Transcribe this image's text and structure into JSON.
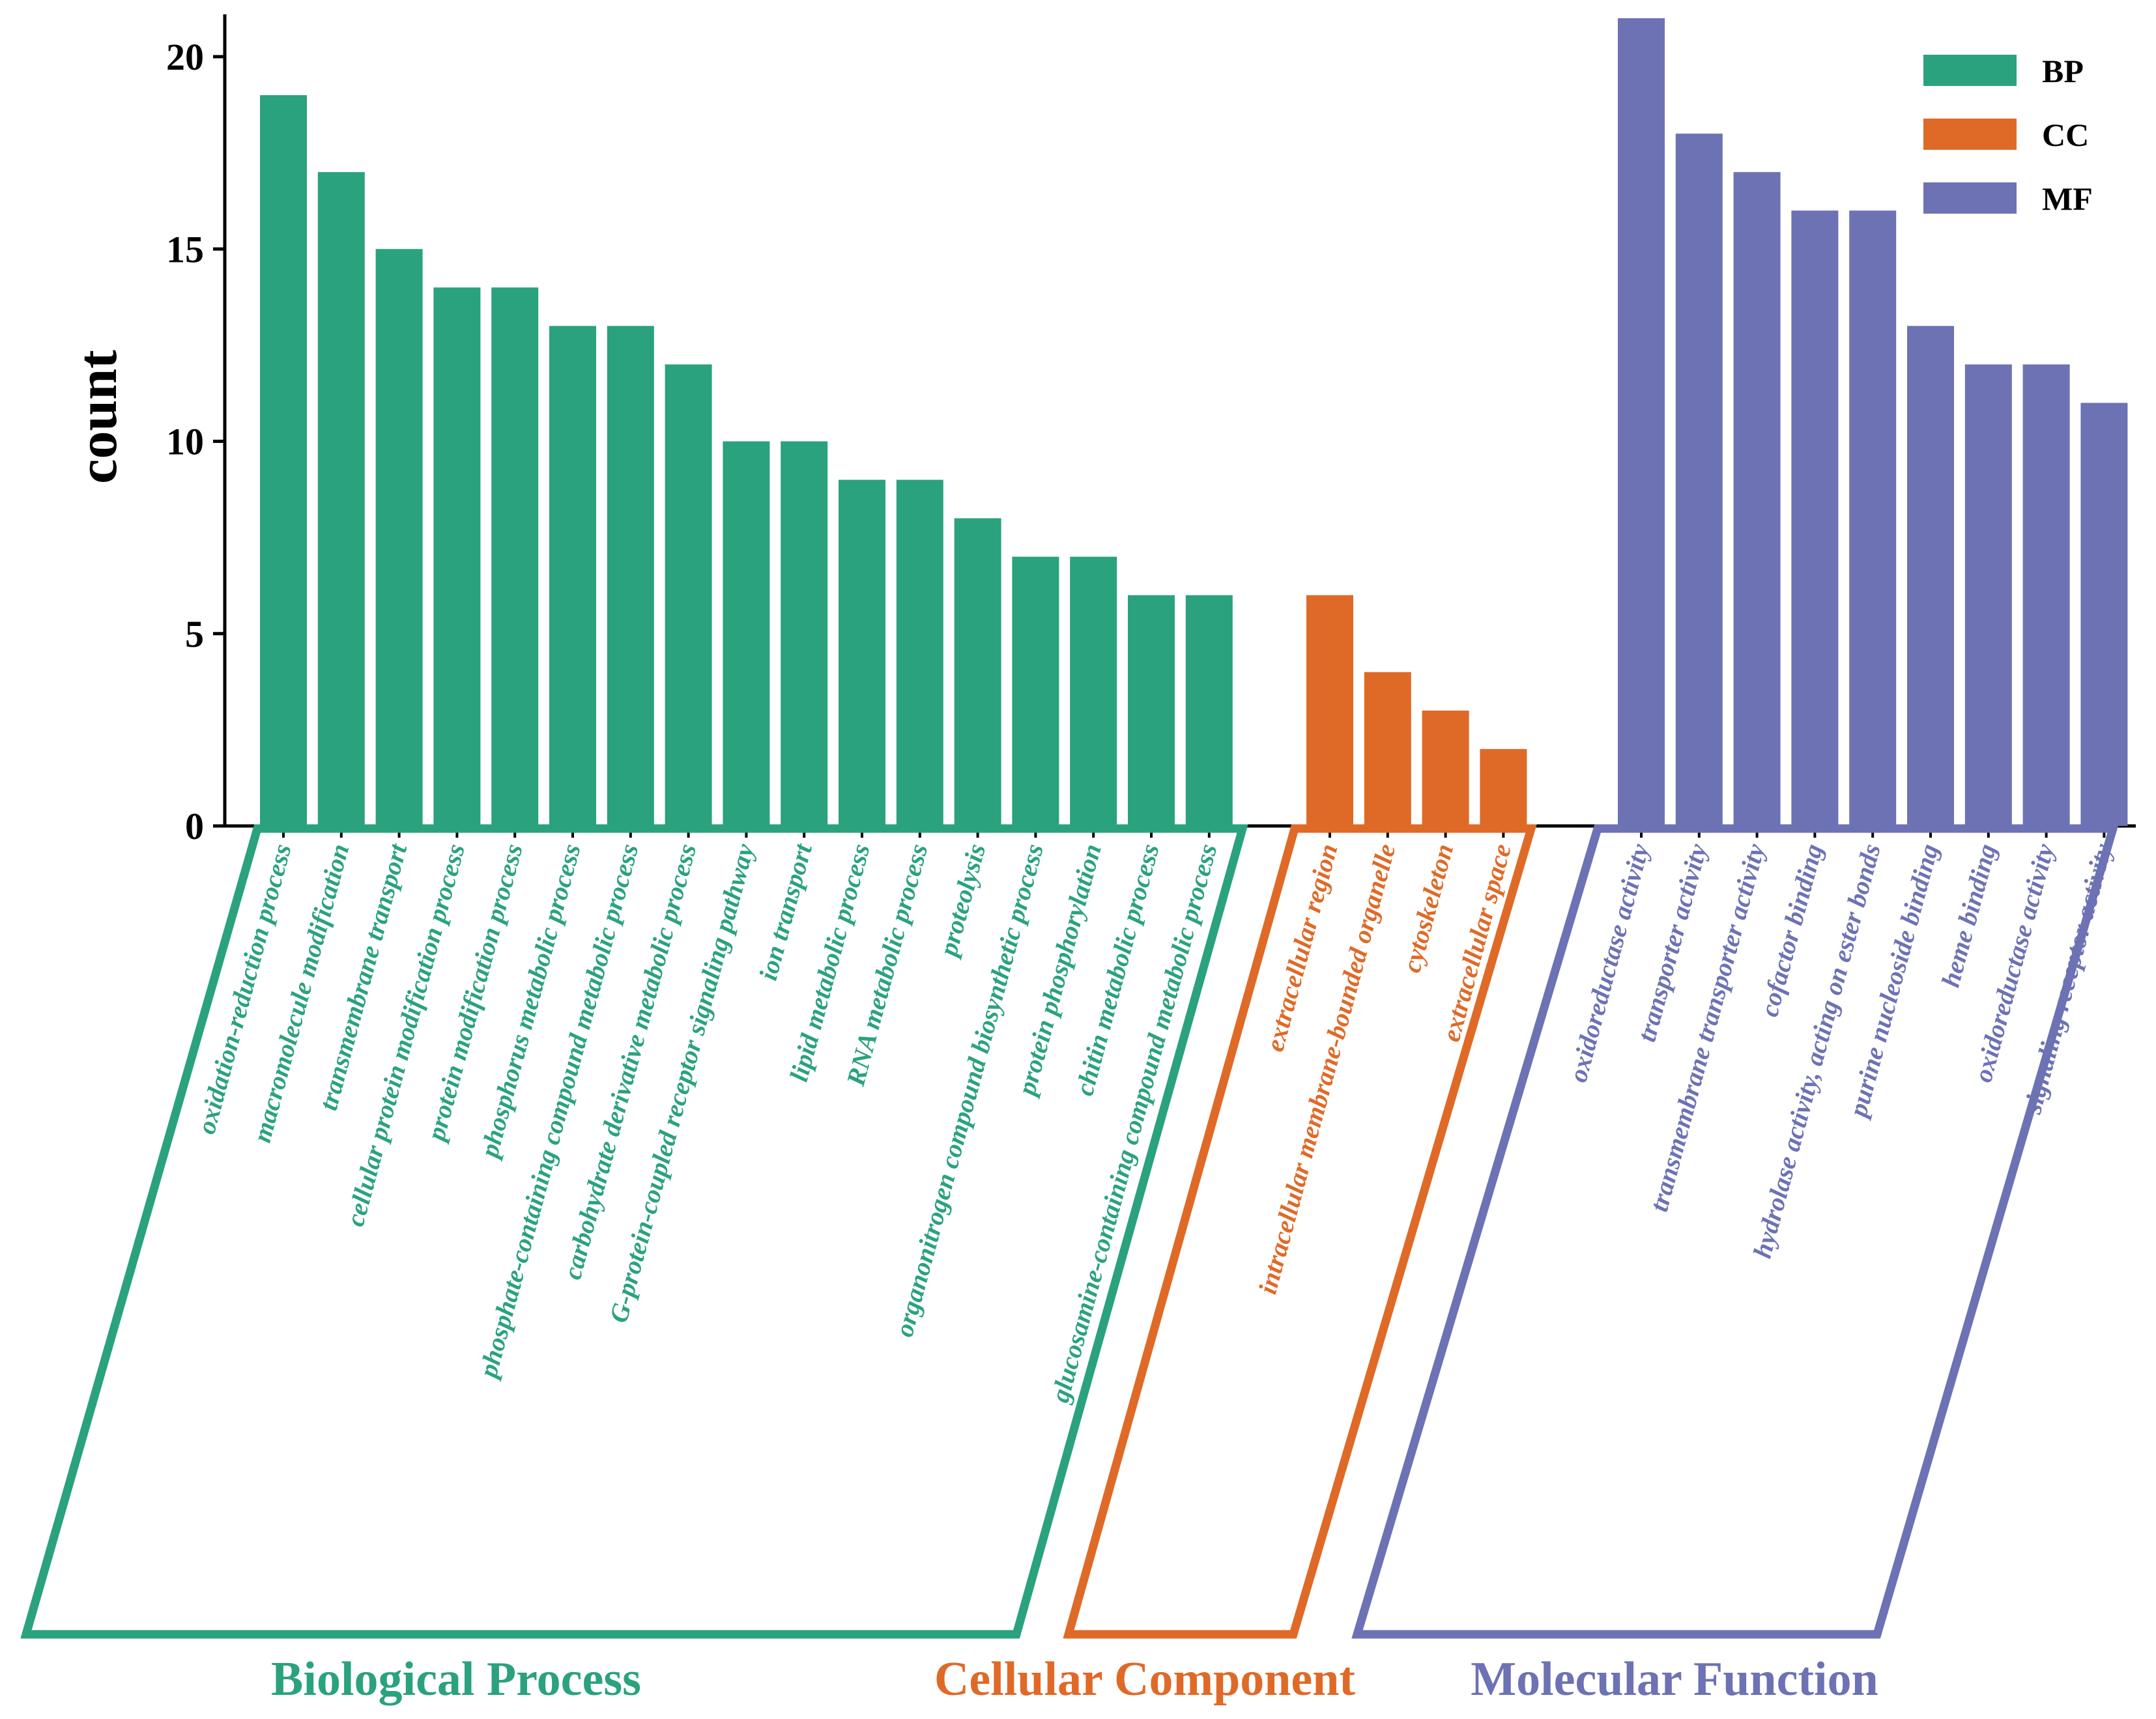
{
  "chart_data": {
    "type": "bar",
    "title": "",
    "xlabel": "",
    "ylabel": "count",
    "ylim": [
      0,
      21
    ],
    "yticks": [
      0,
      5,
      10,
      15,
      20
    ],
    "legend_position": "top-right",
    "grid": false,
    "series": [
      {
        "key": "BP",
        "name": "Biological Process",
        "color": "#2aa27e",
        "categories": [
          "oxidation-reduction process",
          "macromolecule modification",
          "transmembrane transport",
          "cellular protein modification process",
          "protein modification process",
          "phosphorus metabolic process",
          "phosphate-containing compound metabolic process",
          "carbohydrate derivative metabolic process",
          "G-protein-coupled receptor signaling pathway",
          "ion transport",
          "lipid metabolic process",
          "RNA metabolic process",
          "proteolysis",
          "organonitrogen compound biosynthetic process",
          "protein phosphorylation",
          "chitin metabolic process",
          "glucosamine-containing compound metabolic process"
        ],
        "values": [
          19,
          17,
          15,
          14,
          14,
          13,
          13,
          12,
          10,
          10,
          9,
          9,
          8,
          7,
          7,
          6,
          6
        ]
      },
      {
        "key": "CC",
        "name": "Cellular Component",
        "color": "#df6a27",
        "categories": [
          "extracellular region",
          "intracellular membrane-bounded organelle",
          "cytoskeleton",
          "extracellular space"
        ],
        "values": [
          6,
          4,
          3,
          2
        ]
      },
      {
        "key": "MF",
        "name": "Molecular Function",
        "color": "#6c72b3",
        "categories": [
          "oxidoreductase activity",
          "transporter activity",
          "transmembrane transporter activity",
          "cofactor binding",
          "hydrolase activity, acting on ester bonds",
          "purine nucleoside binding",
          "heme binding",
          "oxidoreductase activity",
          "signaling receptor activity"
        ],
        "values": [
          21,
          18,
          17,
          16,
          16,
          13,
          12,
          12,
          11
        ]
      }
    ]
  }
}
